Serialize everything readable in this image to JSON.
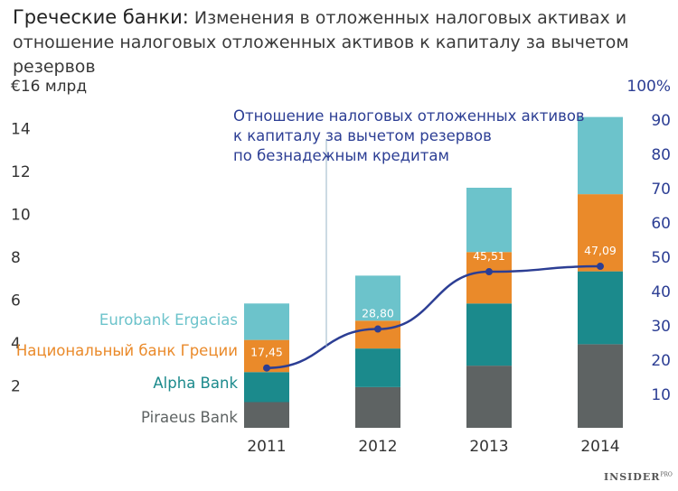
{
  "header": {
    "title_bold": "Греческие банки:",
    "title_rest": " Изменения в отложенных налоговых активах и отношение налоговых отложенных активов к капиталу за вычетом резервов"
  },
  "brand": {
    "name": "INSIDER",
    "suffix": "PRO"
  },
  "colors": {
    "piraeus": "#5e6363",
    "alpha": "#1b8a8c",
    "national": "#ea8a2a",
    "eurobank": "#6cc3cb",
    "ratio_line": "#2c3e94",
    "axis_text": "#333333"
  },
  "chart_data": {
    "type": "bar",
    "stacked": true,
    "categories": [
      "2011",
      "2012",
      "2013",
      "2014"
    ],
    "series": [
      {
        "name": "Piraeus Bank",
        "color_key": "piraeus",
        "values": [
          1.2,
          1.9,
          2.9,
          3.9
        ]
      },
      {
        "name": "Alpha Bank",
        "color_key": "alpha",
        "values": [
          1.4,
          1.8,
          2.9,
          3.4
        ]
      },
      {
        "name": "Национальный банк Греции",
        "color_key": "national",
        "values": [
          1.5,
          1.3,
          2.4,
          3.6
        ]
      },
      {
        "name": "Eurobank Ergacias",
        "color_key": "eurobank",
        "values": [
          1.7,
          2.1,
          3.0,
          3.6
        ]
      }
    ],
    "line_series": {
      "name": "Отношение налоговых отложенных активов к капиталу за вычетом резервов по безнадежным кредитам",
      "axis": "right",
      "values": [
        17.45,
        28.8,
        45.51,
        47.09
      ],
      "labels": [
        "17,45",
        "28,80",
        "45,51",
        "47,09"
      ]
    },
    "y_left": {
      "label": "€16 млрд",
      "ylim": [
        0,
        16
      ],
      "ticks": [
        2,
        4,
        6,
        8,
        10,
        12,
        14
      ]
    },
    "y_right": {
      "label": "100%",
      "ylim": [
        0,
        100
      ],
      "ticks": [
        10,
        20,
        30,
        40,
        50,
        60,
        70,
        80,
        90
      ]
    },
    "legend_placement": "left, beside 2011 bar"
  }
}
